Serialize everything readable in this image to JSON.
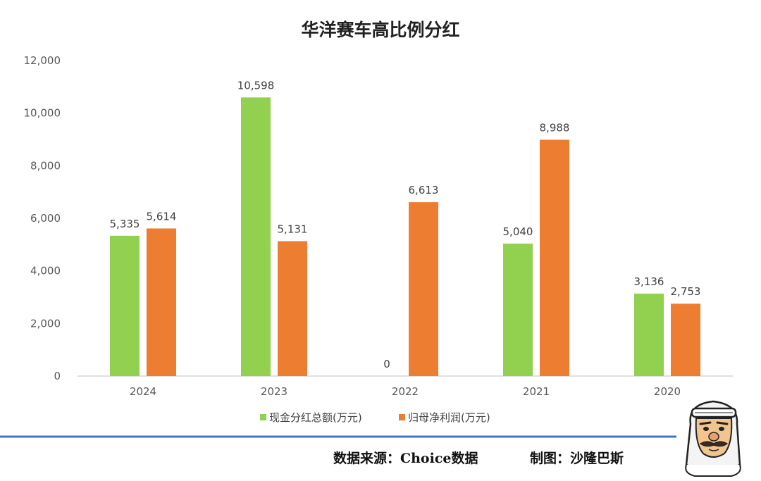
{
  "chart_data": {
    "type": "bar",
    "title": "华洋赛车高比例分红",
    "categories": [
      "2024",
      "2023",
      "2022",
      "2021",
      "2020"
    ],
    "series": [
      {
        "name": "现金分红总额(万元)",
        "values": [
          5335,
          10598,
          0,
          5040,
          3136
        ],
        "color": "#92d050"
      },
      {
        "name": "归母净利润(万元)",
        "values": [
          5614,
          5131,
          6613,
          8988,
          2753
        ],
        "color": "#ed7d31"
      }
    ],
    "ylim": [
      0,
      12000
    ],
    "yticks": [
      0,
      2000,
      4000,
      6000,
      8000,
      10000,
      12000
    ],
    "xlabel": "",
    "ylabel": "",
    "grid": false,
    "legend_position": "bottom"
  },
  "footer": {
    "source": "数据来源：Choice数据",
    "credit": "制图：沙隆巴斯"
  },
  "colors": {
    "divider_line": "#4472c4"
  },
  "icons": {
    "mascot": "mascot-avatar-icon"
  }
}
